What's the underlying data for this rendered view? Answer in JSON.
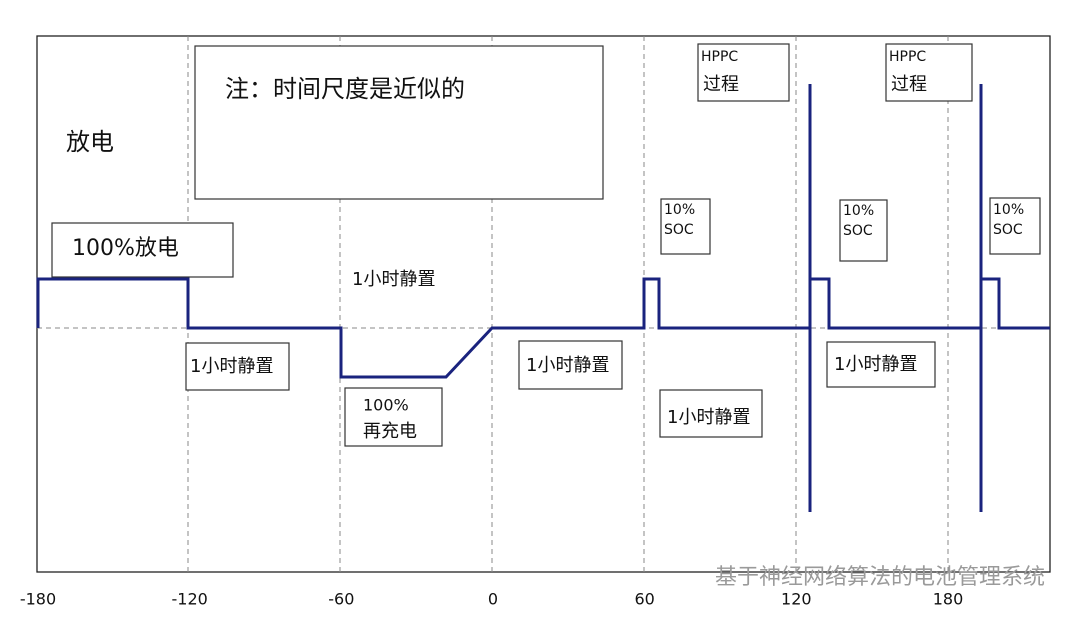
{
  "x_axis": {
    "ticks": [
      -180,
      -120,
      -60,
      0,
      60,
      120,
      180
    ]
  },
  "note": "注：时间尺度是近似的",
  "discharge_title": "放电",
  "labels": {
    "discharge_100": "100%放电",
    "rest_top": "1小时静置",
    "rest_1": "1小时静置",
    "recharge": [
      "100%",
      "再充电"
    ],
    "rest_2": "1小时静置",
    "rest_3": "1小时静置",
    "rest_4": "1小时静置",
    "soc_1": [
      "10%",
      "SOC"
    ],
    "soc_2": [
      "10%",
      "SOC"
    ],
    "soc_3": [
      "10%",
      "SOC"
    ],
    "hppc_1": [
      "HPPC",
      "过程"
    ],
    "hppc_2": [
      "HPPC",
      "过程"
    ]
  },
  "watermark": "基于神经网络算法的电池管理系统"
}
